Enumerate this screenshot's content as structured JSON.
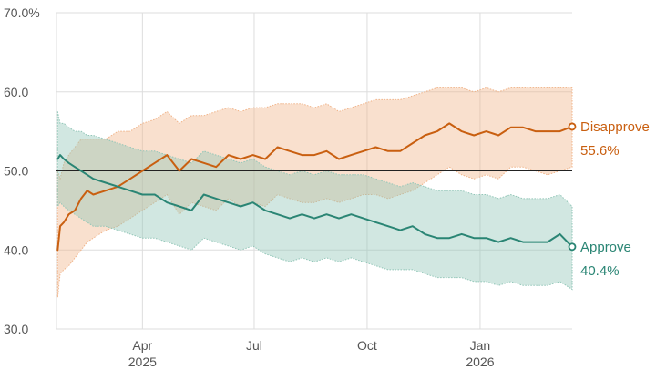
{
  "chart_data": {
    "type": "line",
    "title": "",
    "xlabel": "",
    "ylabel": "",
    "ylim": [
      30,
      70
    ],
    "y_ticks": [
      {
        "value": 70,
        "label": "70.0%"
      },
      {
        "value": 60,
        "label": "60.0"
      },
      {
        "value": 50,
        "label": "50.0"
      },
      {
        "value": 40,
        "label": "40.0"
      },
      {
        "value": 30,
        "label": "30.0"
      }
    ],
    "reference_line": 50,
    "x_range_days": [
      0,
      420
    ],
    "x_ticks": [
      {
        "day": 70,
        "label": "Apr",
        "year": "2025"
      },
      {
        "day": 161,
        "label": "Jul",
        "year": ""
      },
      {
        "day": 253,
        "label": "Oct",
        "year": ""
      },
      {
        "day": 345,
        "label": "Jan",
        "year": "2026"
      }
    ],
    "series": [
      {
        "name": "Disapprove",
        "color": "#c95f10",
        "band_color": "#f0b48a",
        "end_label": "Disapprove",
        "end_value_label": "55.6%",
        "x": [
          1,
          3,
          6,
          10,
          15,
          20,
          25,
          30,
          40,
          50,
          60,
          70,
          80,
          90,
          100,
          110,
          120,
          130,
          140,
          150,
          160,
          170,
          180,
          190,
          200,
          210,
          220,
          230,
          240,
          250,
          260,
          270,
          280,
          290,
          300,
          310,
          320,
          330,
          340,
          350,
          360,
          370,
          380,
          390,
          400,
          410,
          420
        ],
        "values": [
          40,
          43,
          43.5,
          44.5,
          45,
          46.5,
          47.5,
          47,
          47.5,
          48,
          49,
          50,
          51,
          52,
          50,
          51.5,
          51,
          50.5,
          52,
          51.5,
          52,
          51.5,
          53,
          52.5,
          52,
          52,
          52.5,
          51.5,
          52,
          52.5,
          53,
          52.5,
          52.5,
          53.5,
          54.5,
          55,
          56,
          55,
          54.5,
          55,
          54.5,
          55.5,
          55.5,
          55,
          55,
          55,
          55.6
        ],
        "band_upper": [
          50,
          49,
          51,
          52,
          53,
          54,
          54,
          54,
          54,
          55,
          55,
          56,
          56.5,
          57.5,
          56,
          57,
          57,
          57.5,
          58,
          57.5,
          58,
          58,
          58.5,
          58.5,
          58.5,
          58,
          58.5,
          57.5,
          58,
          58.5,
          59,
          59,
          59,
          59.5,
          60,
          60.5,
          60.5,
          60.5,
          60,
          60.5,
          60,
          60.5,
          60.5,
          60.5,
          60.5,
          60.5,
          60.5
        ],
        "band_lower": [
          34,
          37,
          37.5,
          38,
          39,
          40,
          41,
          41.5,
          42.5,
          43,
          44,
          45,
          46,
          47,
          44.5,
          46,
          45.5,
          45,
          46.5,
          45.5,
          46,
          45.5,
          47,
          46.5,
          46,
          46,
          46.5,
          46,
          46.5,
          47,
          47,
          46.5,
          47,
          47.5,
          48.5,
          49.5,
          50.5,
          49.5,
          49,
          49.5,
          49,
          50.5,
          50.5,
          50,
          49.5,
          50,
          50.5
        ]
      },
      {
        "name": "Approve",
        "color": "#2a8574",
        "band_color": "#92c6b8",
        "end_label": "Approve",
        "end_value_label": "40.4%",
        "x": [
          1,
          3,
          6,
          10,
          15,
          20,
          25,
          30,
          40,
          50,
          60,
          70,
          80,
          90,
          100,
          110,
          120,
          130,
          140,
          150,
          160,
          170,
          180,
          190,
          200,
          210,
          220,
          230,
          240,
          250,
          260,
          270,
          280,
          290,
          300,
          310,
          320,
          330,
          340,
          350,
          360,
          370,
          380,
          390,
          400,
          410,
          420
        ],
        "values": [
          51.5,
          52,
          51.5,
          51,
          50.5,
          50,
          49.5,
          49,
          48.5,
          48,
          47.5,
          47,
          47,
          46,
          45.5,
          45,
          47,
          46.5,
          46,
          45.5,
          46,
          45,
          44.5,
          44,
          44.5,
          44,
          44.5,
          44,
          44.5,
          44,
          43.5,
          43,
          42.5,
          43,
          42,
          41.5,
          41.5,
          42,
          41.5,
          41.5,
          41,
          41.5,
          41,
          41,
          41,
          42,
          40.4
        ],
        "band_upper": [
          57.5,
          56,
          56,
          55.5,
          55,
          55,
          54.5,
          54.5,
          54,
          53.5,
          53,
          52.5,
          52.5,
          52,
          51.5,
          51,
          52.5,
          52,
          51.5,
          51,
          51.5,
          50.5,
          50,
          49.5,
          50,
          49.5,
          50,
          49.5,
          49.5,
          49.5,
          49,
          48.5,
          48,
          48.5,
          48,
          47.5,
          47.5,
          47.5,
          47,
          47,
          46.5,
          47,
          46.5,
          46.5,
          46.5,
          47,
          45.5
        ],
        "band_lower": [
          45.5,
          46,
          45.5,
          45,
          44.5,
          44,
          43.5,
          43,
          43,
          42.5,
          42,
          41.5,
          41.5,
          41,
          40.5,
          40,
          41.5,
          41,
          40.5,
          40,
          40.5,
          39.5,
          39,
          38.5,
          39,
          38.5,
          39,
          38.5,
          39,
          38.5,
          38,
          37.5,
          37.5,
          37.5,
          37,
          36.5,
          36.5,
          36.5,
          36,
          36,
          35.5,
          36,
          35.5,
          35.5,
          35.5,
          36,
          35
        ]
      }
    ]
  }
}
